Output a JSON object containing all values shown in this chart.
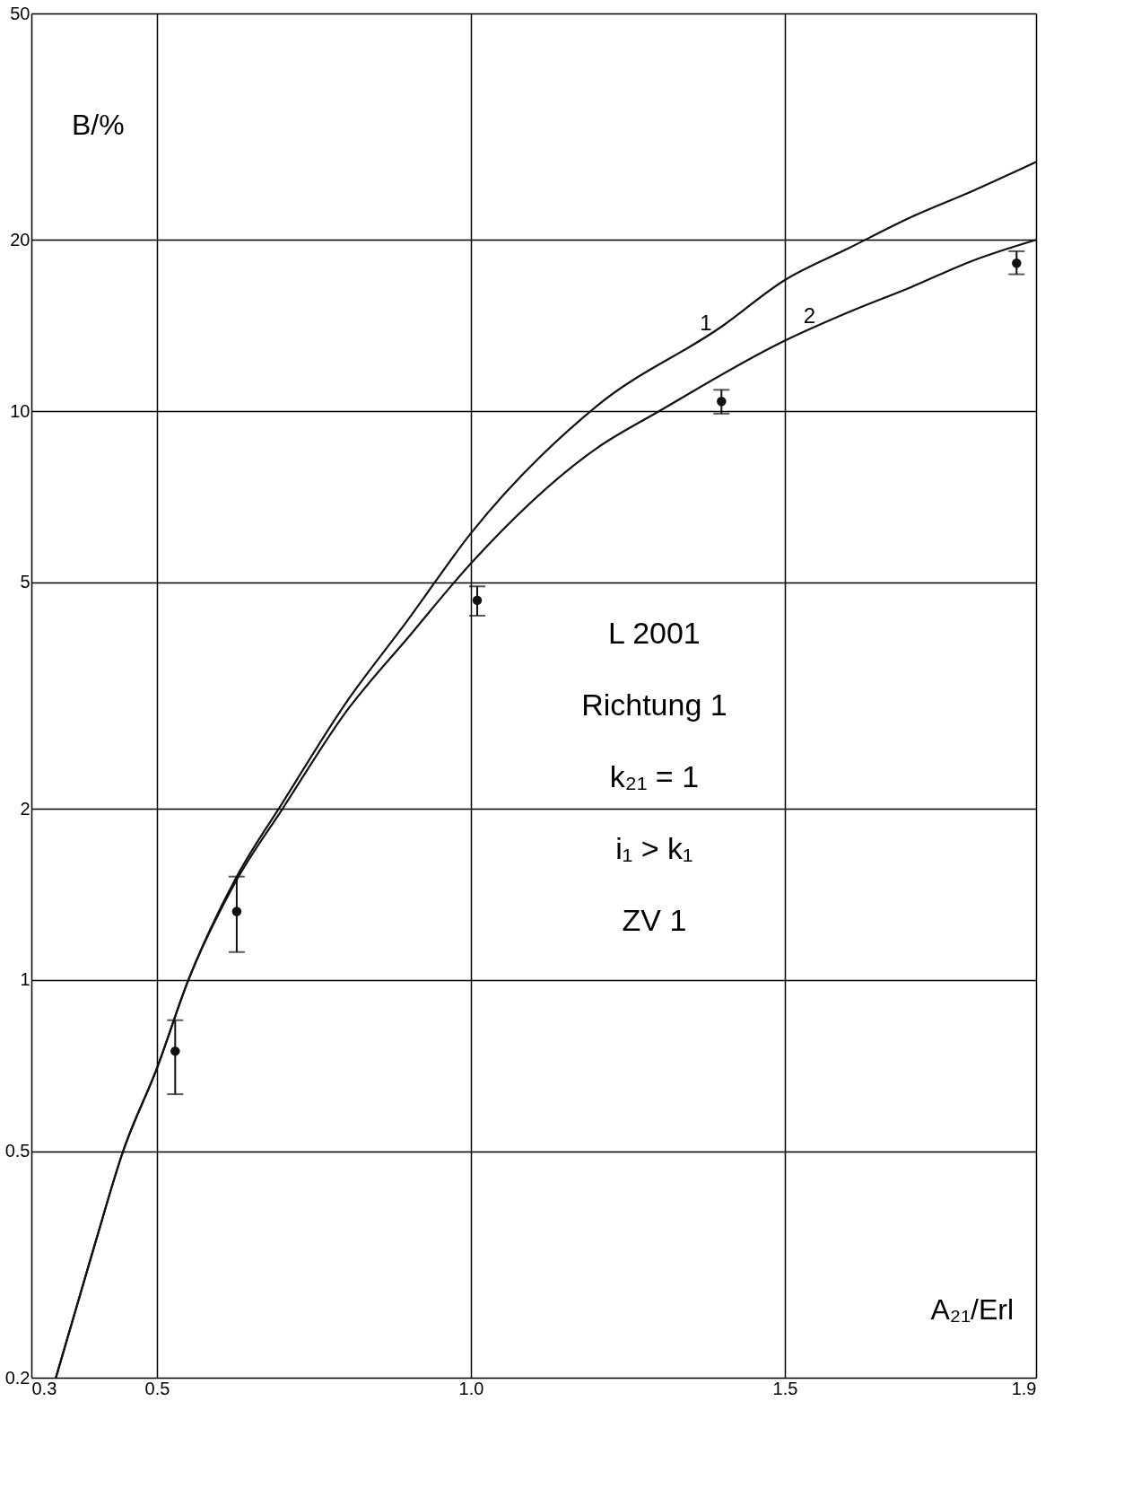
{
  "chart_data": {
    "type": "line",
    "xlabel": "A₂₁/Erl",
    "ylabel": "B/%",
    "xlim": [
      0.3,
      1.9
    ],
    "xticks": [
      0.3,
      0.5,
      {
        "value": 1,
        "label": "1.0"
      },
      1.5,
      1.9
    ],
    "ylim": [
      0.2,
      50
    ],
    "yticks": [
      0.2,
      0.5,
      1,
      2,
      5,
      10,
      20,
      50
    ],
    "log": "y",
    "grid": true,
    "line_style": "solid",
    "marker": "none",
    "series": [
      {
        "color": "#111111",
        "x": [
          0.339,
          0.4,
          0.446,
          0.5,
          0.55,
          0.627,
          0.7,
          0.8,
          0.9,
          1.0,
          1.2,
          1.4,
          1.5,
          1.6,
          1.7,
          1.8,
          1.9
        ],
        "values": [
          0.2,
          0.34,
          0.5,
          0.7,
          1.0,
          1.52,
          2.05,
          3.06,
          4.3,
          6.1,
          10.2,
          14.1,
          17,
          19.3,
          21.9,
          24.4,
          27.4
        ]
      },
      {
        "color": "#111111",
        "x": [
          0.339,
          0.4,
          0.446,
          0.5,
          0.55,
          0.627,
          0.7,
          0.8,
          0.9,
          1.0,
          1.2,
          1.3,
          1.5,
          1.6,
          1.7,
          1.8,
          1.9
        ],
        "values": [
          0.2,
          0.34,
          0.5,
          0.7,
          1.0,
          1.5,
          2.0,
          2.95,
          4.0,
          5.4,
          8.6,
          10,
          13.3,
          14.9,
          16.5,
          18.4,
          20
        ]
      },
      {
        "type": "scatter",
        "color": "#111111",
        "marker": "circle",
        "x": [
          0.529,
          0.627,
          1.01,
          1.399,
          1.869
        ],
        "values": [
          0.75,
          1.32,
          4.65,
          10.4,
          18.2
        ],
        "errors": [
          [
            0.63,
            0.85
          ],
          [
            1.12,
            1.52
          ],
          [
            4.37,
            4.92
          ],
          [
            9.9,
            10.9
          ],
          [
            17.4,
            19.1
          ]
        ]
      }
    ],
    "annotations": [
      {
        "text": "1",
        "x": 1.374,
        "y": 13.5
      },
      {
        "text": "2",
        "x": 1.539,
        "y": 13.9
      },
      "L 2001",
      "Richtung 1",
      "k₂₁ = 1",
      "i₁ > k₁",
      "ZV 1"
    ]
  }
}
